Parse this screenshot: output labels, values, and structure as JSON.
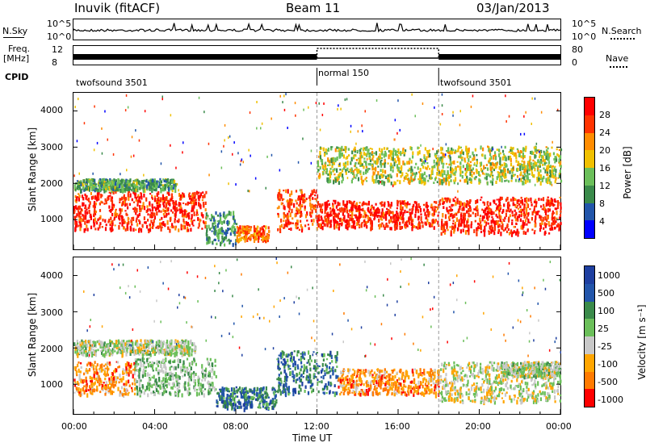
{
  "header": {
    "station": "Inuvik (fitACF)",
    "beam": "Beam 11",
    "date": "03/Jan/2013"
  },
  "top_strip": {
    "nsky_label": "N.Sky",
    "nsearch_label": "N.Search",
    "nsky_ticks": [
      "10^5",
      "10^0"
    ],
    "nsearch_ticks": [
      "10^5",
      "10^0"
    ],
    "freq_label_1": "Freq.",
    "freq_label_2": "[MHz]",
    "freq_ticks": [
      "12",
      "8"
    ],
    "nave_label": "Nave",
    "nave_ticks": [
      "80",
      "0"
    ],
    "cpid_label": "CPID",
    "cpid_segments": [
      {
        "name": "twofsound 3501",
        "start_h": 0,
        "end_h": 12
      },
      {
        "name": "normal 150",
        "start_h": 12,
        "end_h": 18
      },
      {
        "name": "twofsound 3501",
        "start_h": 18,
        "end_h": 24
      }
    ]
  },
  "axes": {
    "x_ticks": [
      "00:00",
      "04:00",
      "08:00",
      "12:00",
      "16:00",
      "20:00",
      "00:00"
    ],
    "xlabel": "Time UT",
    "y_ticks": [
      "1000",
      "2000",
      "3000",
      "4000"
    ],
    "ylabel": "Slant Range [km]",
    "power_cbar_label": "Power [dB]",
    "velocity_cbar_label": "Velocity [m s⁻¹]"
  },
  "colors": {
    "power": [
      "#0000ff",
      "#2255aa",
      "#3a8a4a",
      "#6bbf5a",
      "#f0c000",
      "#ff8c00",
      "#ff3300",
      "#ff0000"
    ],
    "velocity": [
      "#ff0000",
      "#ff7a00",
      "#ffa500",
      "#c8c8c8",
      "#6bbf5a",
      "#3a8a4a",
      "#2255aa",
      "#1e3fa0"
    ]
  },
  "chart_data": [
    {
      "type": "heatmap",
      "title": "Power",
      "xlabel": "Time UT",
      "ylabel": "Slant Range [km]",
      "xlim": [
        0,
        24
      ],
      "ylim": [
        180,
        4500
      ],
      "colorbar": {
        "label": "Power [dB]",
        "ticks": [
          "4",
          "8",
          "12",
          "16",
          "20",
          "24",
          "28"
        ],
        "range": [
          0,
          32
        ]
      },
      "regions": [
        {
          "t0": 0.0,
          "t1": 6.5,
          "r0": 700,
          "r1": 1750,
          "value": 28
        },
        {
          "t0": 6.5,
          "t1": 8.0,
          "r0": 300,
          "r1": 1200,
          "value": 10
        },
        {
          "t0": 8.0,
          "t1": 9.6,
          "r0": 400,
          "r1": 800,
          "value": 24
        },
        {
          "t0": 10.0,
          "t1": 12.0,
          "r0": 700,
          "r1": 1800,
          "value": 26
        },
        {
          "t0": 12.0,
          "t1": 18.0,
          "r0": 750,
          "r1": 1500,
          "value": 28
        },
        {
          "t0": 18.0,
          "t1": 24.0,
          "r0": 600,
          "r1": 1600,
          "value": 28
        },
        {
          "t0": 0.0,
          "t1": 5.0,
          "r0": 1800,
          "r1": 2100,
          "value": 12
        },
        {
          "t0": 12.0,
          "t1": 24.0,
          "r0": 2000,
          "r1": 3000,
          "value": 16
        }
      ]
    },
    {
      "type": "heatmap",
      "title": "Velocity",
      "xlabel": "Time UT",
      "ylabel": "Slant Range [km]",
      "xlim": [
        0,
        24
      ],
      "ylim": [
        180,
        4500
      ],
      "colorbar": {
        "label": "Velocity [m s⁻¹]",
        "ticks": [
          "-1000",
          "-500",
          "-100",
          "-25",
          "25",
          "100",
          "500",
          "1000"
        ],
        "range": [
          -1000,
          1000
        ]
      },
      "regions": [
        {
          "t0": 0.0,
          "t1": 3.0,
          "r0": 700,
          "r1": 1600,
          "value": -500
        },
        {
          "t0": 3.0,
          "t1": 7.0,
          "r0": 700,
          "r1": 1700,
          "value": 100
        },
        {
          "t0": 7.0,
          "t1": 10.0,
          "r0": 300,
          "r1": 900,
          "value": 500
        },
        {
          "t0": 10.0,
          "t1": 13.0,
          "r0": 700,
          "r1": 1900,
          "value": 500
        },
        {
          "t0": 13.0,
          "t1": 18.0,
          "r0": 700,
          "r1": 1400,
          "value": -500
        },
        {
          "t0": 18.0,
          "t1": 24.0,
          "r0": 500,
          "r1": 1600,
          "value": -100
        },
        {
          "t0": 21.0,
          "t1": 24.0,
          "r0": 1200,
          "r1": 1600,
          "value": 0
        },
        {
          "t0": 0.0,
          "t1": 6.0,
          "r0": 1800,
          "r1": 2200,
          "value": -25
        }
      ]
    }
  ]
}
